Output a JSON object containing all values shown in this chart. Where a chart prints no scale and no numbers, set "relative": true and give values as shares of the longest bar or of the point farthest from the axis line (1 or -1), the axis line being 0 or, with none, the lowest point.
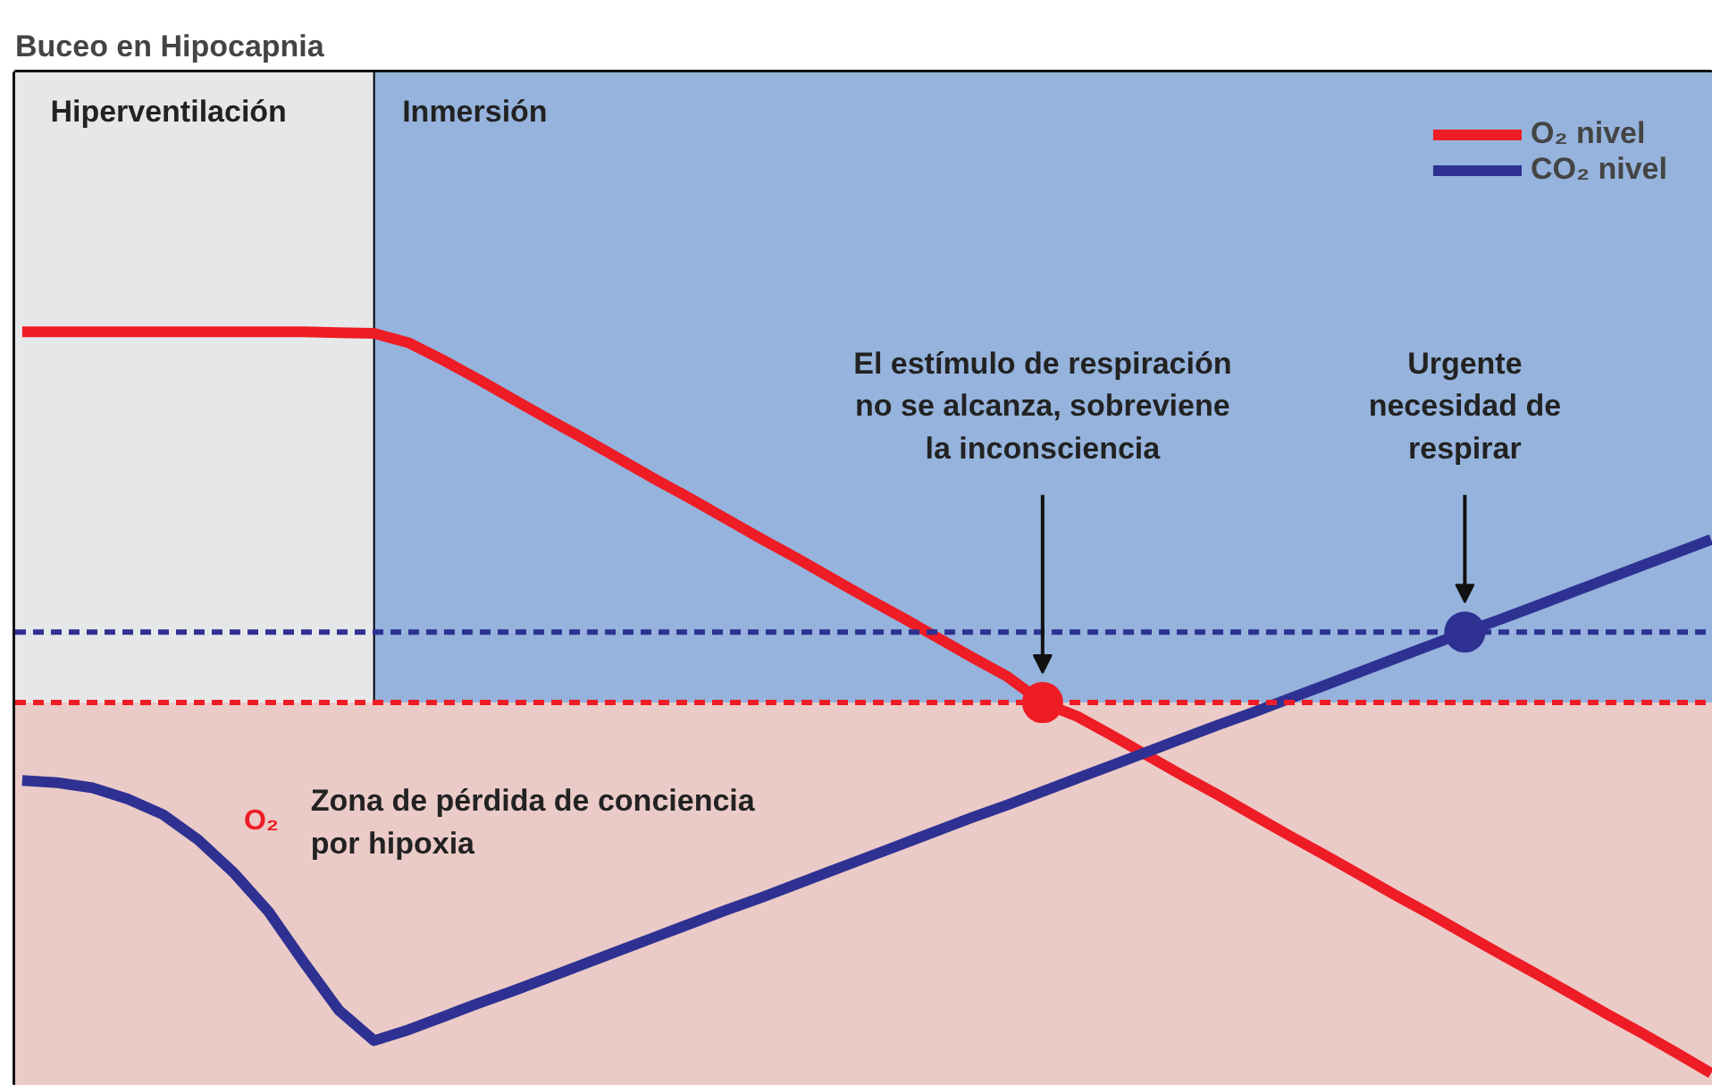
{
  "chart_data": {
    "type": "line",
    "title": "Buceo en Hipocapnia",
    "relative": true,
    "legend": "top right",
    "tick_labels": false,
    "line_style": "solid",
    "marker": "none",
    "categories": [
      null,
      null,
      null,
      null,
      null,
      null,
      null,
      null,
      null,
      null,
      null,
      null,
      null,
      null,
      null,
      null,
      null,
      null,
      null,
      null,
      null,
      null,
      null,
      null,
      null,
      null,
      null,
      null,
      null,
      null,
      null,
      null,
      null,
      null,
      null,
      null,
      null,
      null,
      null,
      null,
      null,
      null,
      null,
      null,
      null,
      null,
      null,
      null,
      null
    ],
    "series": [
      {
        "name": "O₂ nivel",
        "color": "#ee1c25",
        "values": [
          1.0,
          1.0,
          1.0,
          1.0,
          1.0,
          1.0,
          1.0,
          1.0,
          1.0,
          0.999,
          0.998,
          0.985,
          0.961,
          0.935,
          0.908,
          0.881,
          0.855,
          0.828,
          0.801,
          0.775,
          0.748,
          0.721,
          0.695,
          0.668,
          0.641,
          0.615,
          0.588,
          0.561,
          0.535,
          0.5,
          0.481,
          0.455,
          0.428,
          0.401,
          0.375,
          0.348,
          0.321,
          0.295,
          0.268,
          0.241,
          0.215,
          0.188,
          0.161,
          0.135,
          0.108,
          0.081,
          0.055,
          0.028,
          0.0
        ]
      },
      {
        "name": "CO₂ nivel",
        "color": "#2e3192",
        "values": [
          0.395,
          0.392,
          0.385,
          0.37,
          0.349,
          0.315,
          0.271,
          0.218,
          0.15,
          0.085,
          0.044,
          0.059,
          0.077,
          0.095,
          0.112,
          0.13,
          0.148,
          0.166,
          0.184,
          0.202,
          0.22,
          0.237,
          0.255,
          0.273,
          0.291,
          0.309,
          0.327,
          0.345,
          0.362,
          0.38,
          0.398,
          0.416,
          0.434,
          0.452,
          0.47,
          0.487,
          0.505,
          0.523,
          0.541,
          0.559,
          0.577,
          0.595,
          0.612,
          0.63,
          0.648,
          0.666,
          0.684,
          0.702,
          0.72
        ]
      }
    ],
    "ref_lines": [
      {
        "axis": "y",
        "value": 0.5,
        "color": "#ee1c25",
        "line_style": "dashed"
      },
      {
        "axis": "y",
        "value": 0.595,
        "color": "#2e3192",
        "line_style": "dashed"
      }
    ],
    "bands": [
      {
        "axis": "y",
        "from": 0,
        "to": 0.5,
        "label": "Zona de pérdida de conciencia por hipoxia",
        "color": "#ebcbc8"
      }
    ],
    "annotations": [
      "El estímulo de respiración no se alcanza, sobreviene la inconsciencia",
      "Urgente necesidad de respirar",
      "O₂",
      "Hiperventilación",
      "Inmersión"
    ]
  }
}
